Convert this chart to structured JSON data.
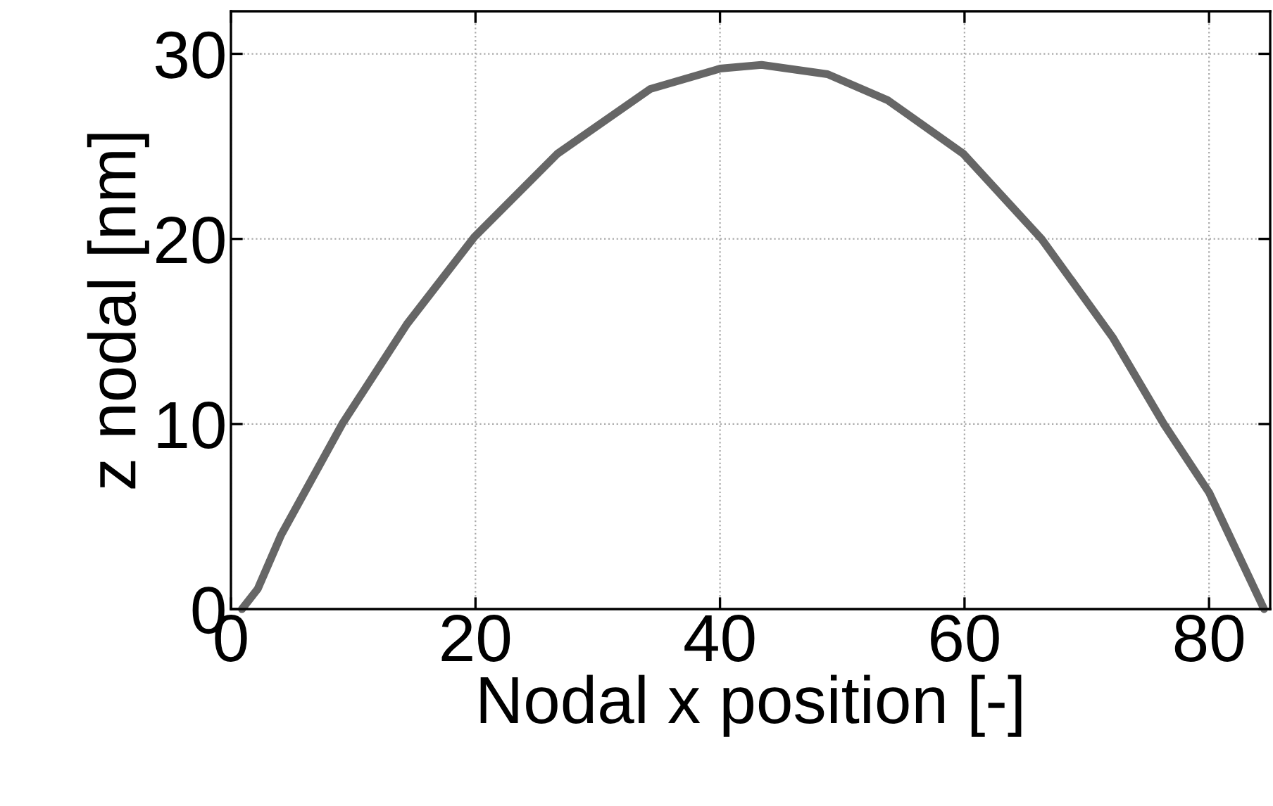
{
  "chart_data": {
    "type": "line",
    "xlabel": "Nodal x position [-]",
    "ylabel": "z nodal [nm]",
    "x": [
      0.9,
      2.2,
      4.1,
      9.1,
      14.4,
      19.9,
      26.7,
      34.3,
      40,
      43.4,
      48.8,
      53.7,
      59.9,
      66.3,
      72.1,
      76.3,
      80,
      84.5
    ],
    "series": [
      {
        "color": "#666666",
        "values": [
          0,
          1.1,
          4.0,
          10.0,
          15.4,
          20.1,
          24.6,
          28.1,
          29.2,
          29.4,
          28.9,
          27.5,
          24.6,
          20,
          14.7,
          10,
          6.3,
          0
        ]
      }
    ],
    "xlim": [
      0,
      85
    ],
    "ylim": [
      0,
      32.3
    ],
    "xticks": [
      0,
      20,
      40,
      60,
      80
    ],
    "yticks": [
      0,
      10,
      20,
      30
    ],
    "grid": true,
    "line_style": "solid",
    "marker": "none"
  }
}
